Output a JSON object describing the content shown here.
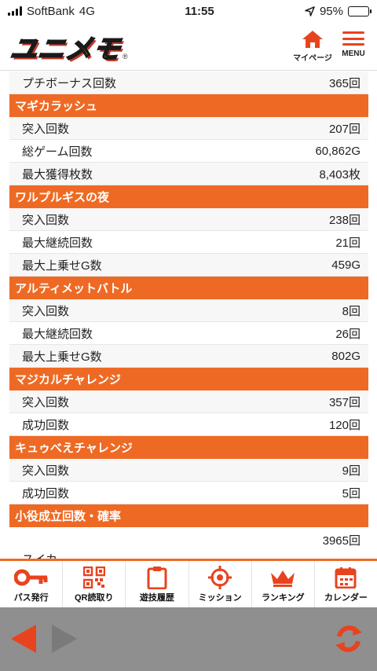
{
  "status": {
    "carrier": "SoftBank",
    "network": "4G",
    "time": "11:55",
    "battery": "95%",
    "battery_level": 0.95
  },
  "header": {
    "logo": "ユニメモ",
    "mypage_label": "マイページ",
    "menu_label": "MENU"
  },
  "rows": [
    {
      "type": "row",
      "label": "プチボーナス回数",
      "value": "365回"
    },
    {
      "type": "section",
      "label": "マギカラッシュ"
    },
    {
      "type": "row",
      "label": "突入回数",
      "value": "207回"
    },
    {
      "type": "row",
      "label": "総ゲーム回数",
      "value": "60,862G"
    },
    {
      "type": "row",
      "label": "最大獲得枚数",
      "value": "8,403枚"
    },
    {
      "type": "section",
      "label": "ワルプルギスの夜"
    },
    {
      "type": "row",
      "label": "突入回数",
      "value": "238回"
    },
    {
      "type": "row",
      "label": "最大継続回数",
      "value": "21回"
    },
    {
      "type": "row",
      "label": "最大上乗せG数",
      "value": "459G"
    },
    {
      "type": "section",
      "label": "アルティメットバトル"
    },
    {
      "type": "row",
      "label": "突入回数",
      "value": "8回"
    },
    {
      "type": "row",
      "label": "最大継続回数",
      "value": "26回"
    },
    {
      "type": "row",
      "label": "最大上乗せG数",
      "value": "802G"
    },
    {
      "type": "section",
      "label": "マジカルチャレンジ"
    },
    {
      "type": "row",
      "label": "突入回数",
      "value": "357回"
    },
    {
      "type": "row",
      "label": "成功回数",
      "value": "120回"
    },
    {
      "type": "section",
      "label": "キュゥべえチャレンジ"
    },
    {
      "type": "row",
      "label": "突入回数",
      "value": "9回"
    },
    {
      "type": "row",
      "label": "成功回数",
      "value": "5回"
    },
    {
      "type": "section",
      "label": "小役成立回数・確率"
    },
    {
      "type": "tall",
      "label": "スイカ",
      "value": "3965回"
    }
  ],
  "tabs": [
    {
      "label": "パス発行",
      "icon": "key-icon"
    },
    {
      "label": "QR読取り",
      "icon": "qr-code-icon"
    },
    {
      "label": "遊技履歴",
      "icon": "clipboard-icon"
    },
    {
      "label": "ミッション",
      "icon": "target-icon"
    },
    {
      "label": "ランキング",
      "icon": "crown-icon"
    },
    {
      "label": "カレンダー",
      "icon": "calendar-icon"
    }
  ],
  "colors": {
    "accent": "#ee6a24",
    "nav_bg": "#8f8f8f",
    "row_bg": "#f7f7f7"
  }
}
